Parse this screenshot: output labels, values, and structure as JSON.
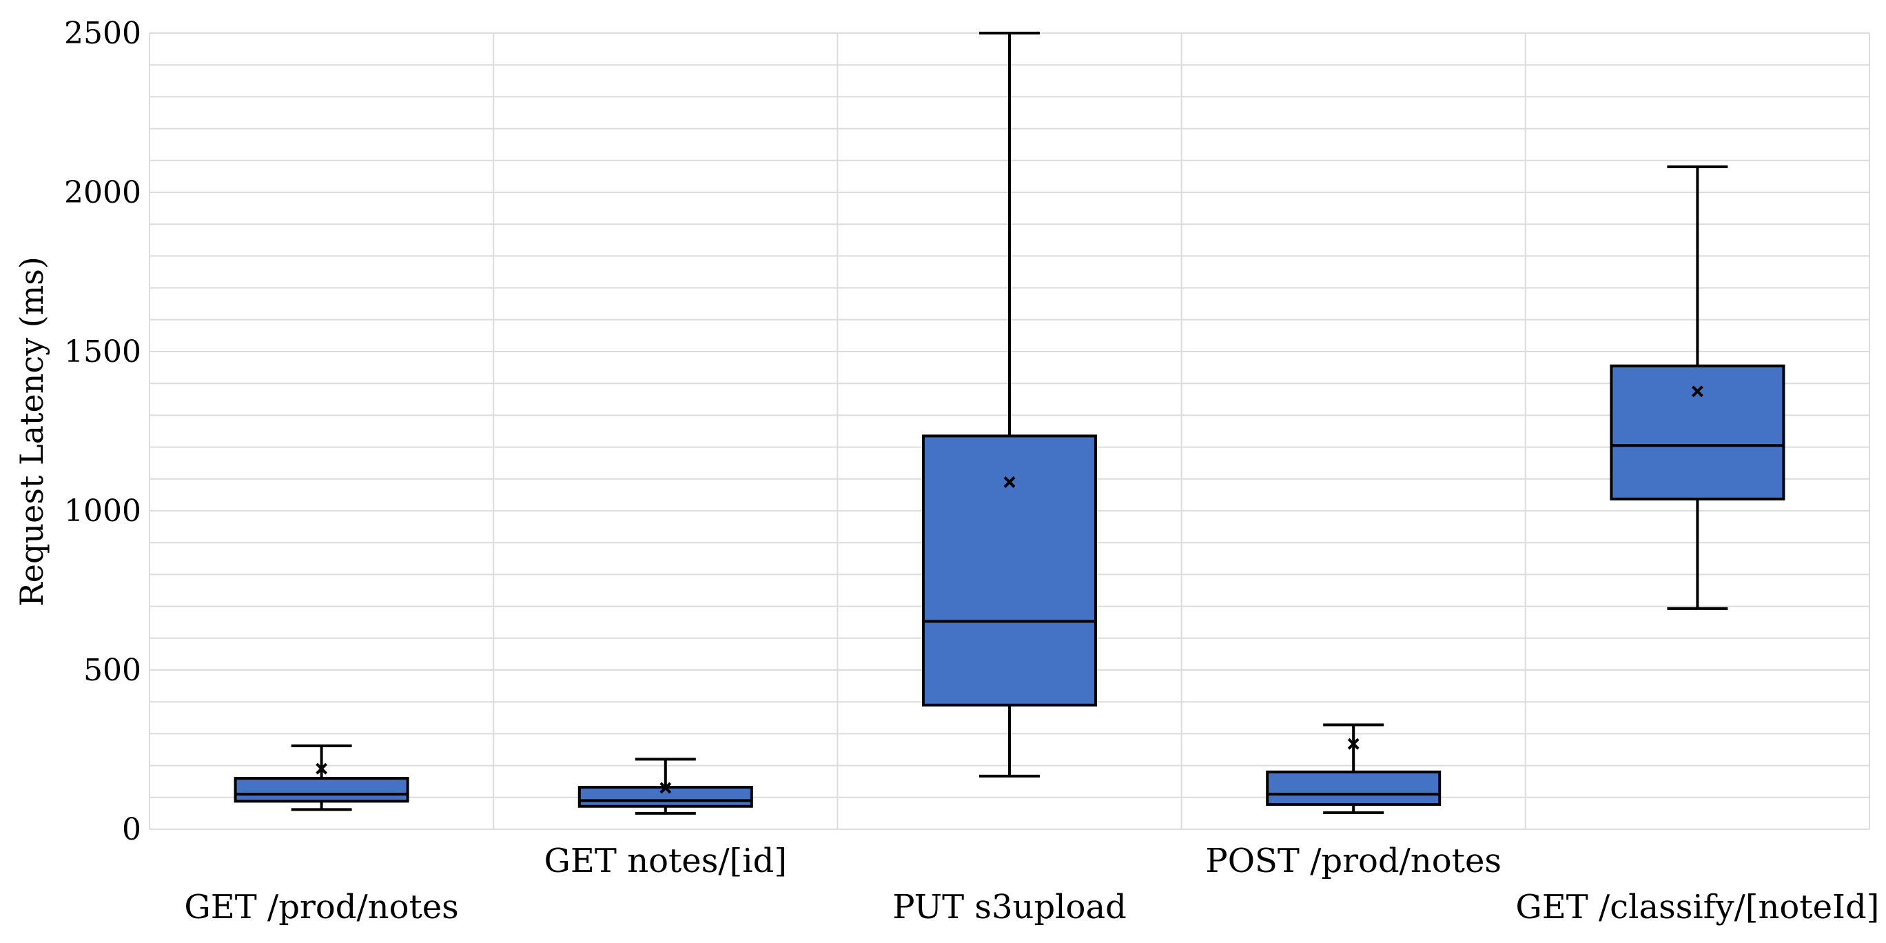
{
  "chart_data": {
    "type": "box",
    "title": "",
    "xlabel": "",
    "ylabel": "Request Latency (ms)",
    "ylim": [
      0,
      2500
    ],
    "yticks": [
      0,
      500,
      1000,
      1500,
      2000,
      2500
    ],
    "grid": true,
    "colors": {
      "box_fill": "#4472C4",
      "stroke": "#000000",
      "grid": "#DCDCDC"
    },
    "categories": [
      "GET /prod/notes",
      "GET notes/[id]",
      "PUT s3upload",
      "POST /prod/notes",
      "GET /classify/[noteId]"
    ],
    "boxes": [
      {
        "min": 62,
        "q1": 88,
        "median": 110,
        "q3": 160,
        "max": 262,
        "mean": 190
      },
      {
        "min": 50,
        "q1": 72,
        "median": 90,
        "q3": 132,
        "max": 220,
        "mean": 130
      },
      {
        "min": 167,
        "q1": 390,
        "median": 653,
        "q3": 1235,
        "max": 2500,
        "mean": 1090
      },
      {
        "min": 52,
        "q1": 78,
        "median": 110,
        "q3": 180,
        "max": 328,
        "mean": 268
      },
      {
        "min": 693,
        "q1": 1037,
        "median": 1205,
        "q3": 1455,
        "max": 2080,
        "mean": 1375
      }
    ]
  }
}
